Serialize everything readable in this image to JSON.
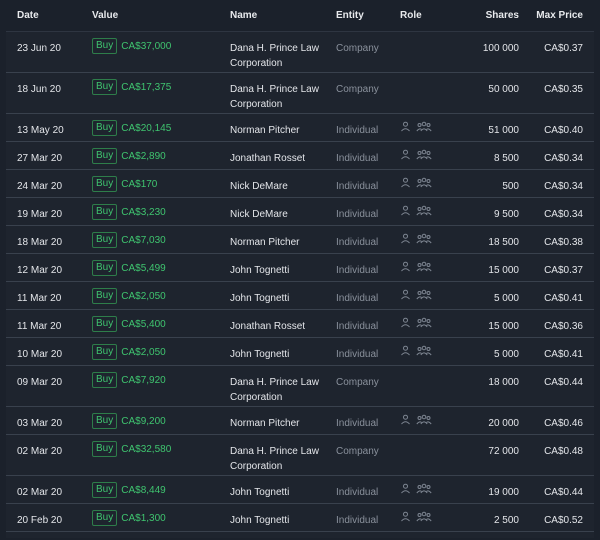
{
  "headers": {
    "date": "Date",
    "value": "Value",
    "name": "Name",
    "entity": "Entity",
    "role": "Role",
    "shares": "Shares",
    "max_price": "Max Price"
  },
  "rows": [
    {
      "date": "23 Jun 20",
      "type": "Buy",
      "value": "CA$37,000",
      "name": "Dana H. Prince Law Corporation",
      "entity": "Company",
      "shares": "100 000",
      "price": "CA$0.37",
      "has_role": false
    },
    {
      "date": "18 Jun 20",
      "type": "Buy",
      "value": "CA$17,375",
      "name": "Dana H. Prince Law Corporation",
      "entity": "Company",
      "shares": "50 000",
      "price": "CA$0.35",
      "has_role": false
    },
    {
      "date": "13 May 20",
      "type": "Buy",
      "value": "CA$20,145",
      "name": "Norman Pitcher",
      "entity": "Individual",
      "shares": "51 000",
      "price": "CA$0.40",
      "has_role": true
    },
    {
      "date": "27 Mar 20",
      "type": "Buy",
      "value": "CA$2,890",
      "name": "Jonathan Rosset",
      "entity": "Individual",
      "shares": "8 500",
      "price": "CA$0.34",
      "has_role": true
    },
    {
      "date": "24 Mar 20",
      "type": "Buy",
      "value": "CA$170",
      "name": "Nick DeMare",
      "entity": "Individual",
      "shares": "500",
      "price": "CA$0.34",
      "has_role": true
    },
    {
      "date": "19 Mar 20",
      "type": "Buy",
      "value": "CA$3,230",
      "name": "Nick DeMare",
      "entity": "Individual",
      "shares": "9 500",
      "price": "CA$0.34",
      "has_role": true
    },
    {
      "date": "18 Mar 20",
      "type": "Buy",
      "value": "CA$7,030",
      "name": "Norman Pitcher",
      "entity": "Individual",
      "shares": "18 500",
      "price": "CA$0.38",
      "has_role": true
    },
    {
      "date": "12 Mar 20",
      "type": "Buy",
      "value": "CA$5,499",
      "name": "John Tognetti",
      "entity": "Individual",
      "shares": "15 000",
      "price": "CA$0.37",
      "has_role": true
    },
    {
      "date": "11 Mar 20",
      "type": "Buy",
      "value": "CA$2,050",
      "name": "John Tognetti",
      "entity": "Individual",
      "shares": "5 000",
      "price": "CA$0.41",
      "has_role": true
    },
    {
      "date": "11 Mar 20",
      "type": "Buy",
      "value": "CA$5,400",
      "name": "Jonathan Rosset",
      "entity": "Individual",
      "shares": "15 000",
      "price": "CA$0.36",
      "has_role": true
    },
    {
      "date": "10 Mar 20",
      "type": "Buy",
      "value": "CA$2,050",
      "name": "John Tognetti",
      "entity": "Individual",
      "shares": "5 000",
      "price": "CA$0.41",
      "has_role": true
    },
    {
      "date": "09 Mar 20",
      "type": "Buy",
      "value": "CA$7,920",
      "name": "Dana H. Prince Law Corporation",
      "entity": "Company",
      "shares": "18 000",
      "price": "CA$0.44",
      "has_role": false
    },
    {
      "date": "03 Mar 20",
      "type": "Buy",
      "value": "CA$9,200",
      "name": "Norman Pitcher",
      "entity": "Individual",
      "shares": "20 000",
      "price": "CA$0.46",
      "has_role": true
    },
    {
      "date": "02 Mar 20",
      "type": "Buy",
      "value": "CA$32,580",
      "name": "Dana H. Prince Law Corporation",
      "entity": "Company",
      "shares": "72 000",
      "price": "CA$0.48",
      "has_role": false
    },
    {
      "date": "02 Mar 20",
      "type": "Buy",
      "value": "CA$8,449",
      "name": "John Tognetti",
      "entity": "Individual",
      "shares": "19 000",
      "price": "CA$0.44",
      "has_role": true
    },
    {
      "date": "20 Feb 20",
      "type": "Buy",
      "value": "CA$1,300",
      "name": "John Tognetti",
      "entity": "Individual",
      "shares": "2 500",
      "price": "CA$0.52",
      "has_role": true
    }
  ],
  "icons": {
    "person": "person-icon",
    "group": "group-icon"
  },
  "colors": {
    "buy": "#3fc46f",
    "background": "#1e242e",
    "divider": "#39414d"
  }
}
